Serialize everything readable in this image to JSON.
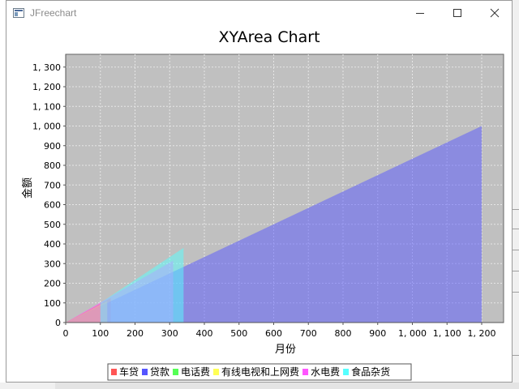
{
  "window": {
    "title": "JFreechart"
  },
  "controls": {
    "minimize_icon": "minimize-icon",
    "maximize_icon": "maximize-icon",
    "close_icon": "close-icon"
  },
  "colors": {
    "plot_bg": "#c0c0c0",
    "grid": "#e6e6e6"
  },
  "chart_data": {
    "type": "area",
    "title": "XYArea Chart",
    "xlabel": "月份",
    "ylabel": "金额",
    "xlim": [
      0,
      1260
    ],
    "ylim": [
      0,
      1365
    ],
    "xticks": [
      0,
      100,
      200,
      300,
      400,
      500,
      600,
      700,
      800,
      900,
      1000,
      1100,
      1200
    ],
    "xtick_labels": [
      "0",
      "100",
      "200",
      "300",
      "400",
      "500",
      "600",
      "700",
      "800",
      "900",
      "1, 000",
      "1, 100",
      "1, 200"
    ],
    "yticks": [
      0,
      100,
      200,
      300,
      400,
      500,
      600,
      700,
      800,
      900,
      1000,
      1100,
      1200,
      1300
    ],
    "ytick_labels": [
      "0",
      "100",
      "200",
      "300",
      "400",
      "500",
      "600",
      "700",
      "800",
      "900",
      "1, 000",
      "1, 100",
      "1, 200",
      "1, 300"
    ],
    "grid": true,
    "legend_position": "bottom",
    "series": [
      {
        "name": "车贷",
        "color": "#ff5555",
        "points": [
          [
            0,
            0
          ],
          [
            130,
            125
          ]
        ]
      },
      {
        "name": "贷款",
        "color": "#5555ff",
        "points": [
          [
            0,
            0
          ],
          [
            1200,
            1000
          ]
        ]
      },
      {
        "name": "电话费",
        "color": "#55ff55",
        "points": [
          [
            0,
            0
          ],
          [
            100,
            90
          ]
        ]
      },
      {
        "name": "有线电视和上网费",
        "color": "#ffff55",
        "points": [
          [
            0,
            0
          ],
          [
            120,
            110
          ]
        ]
      },
      {
        "name": "水电费",
        "color": "#ff55ff",
        "points": [
          [
            0,
            0
          ],
          [
            310,
            315
          ]
        ]
      },
      {
        "name": "食品杂货",
        "color": "#55ffff",
        "points": [
          [
            100,
            100
          ],
          [
            340,
            380
          ]
        ]
      }
    ]
  }
}
